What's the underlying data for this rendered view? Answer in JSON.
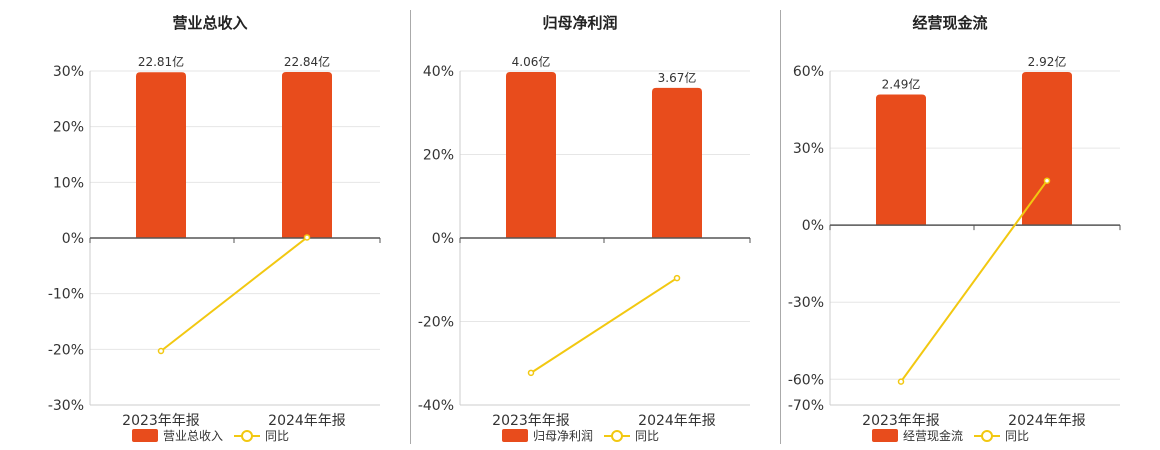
{
  "colors": {
    "bar": "#E84C1C",
    "line": "#F2C811",
    "grid": "#e6e6e6",
    "axis": "#555555"
  },
  "chart_data": [
    {
      "type": "bar",
      "title": "营业总收入",
      "categories": [
        "2023年年报",
        "2024年年报"
      ],
      "series": [
        {
          "name": "营业总收入",
          "type": "bar",
          "values": [
            22.81,
            22.84
          ],
          "labels": [
            "22.81亿",
            "22.84亿"
          ]
        },
        {
          "name": "同比",
          "type": "line",
          "values": [
            -20.3,
            0.1
          ]
        }
      ],
      "yticks": [
        30,
        20,
        10,
        0,
        -10,
        -20,
        -30
      ],
      "ytick_labels": [
        "30%",
        "20%",
        "10%",
        "0%",
        "-10%",
        "-20%",
        "-30%"
      ],
      "ylim": [
        -30,
        30
      ],
      "legend": "bottom"
    },
    {
      "type": "bar",
      "title": "归母净利润",
      "categories": [
        "2023年年报",
        "2024年年报"
      ],
      "series": [
        {
          "name": "归母净利润",
          "type": "bar",
          "values": [
            4.06,
            3.67
          ],
          "labels": [
            "4.06亿",
            "3.67亿"
          ]
        },
        {
          "name": "同比",
          "type": "line",
          "values": [
            -32.3,
            -9.6
          ]
        }
      ],
      "yticks": [
        40,
        20,
        0,
        -20,
        -40
      ],
      "ytick_labels": [
        "40%",
        "20%",
        "0%",
        "-20%",
        "-40%"
      ],
      "ylim": [
        -40,
        40
      ],
      "legend": "bottom"
    },
    {
      "type": "bar",
      "title": "经营现金流",
      "categories": [
        "2023年年报",
        "2024年年报"
      ],
      "series": [
        {
          "name": "经营现金流",
          "type": "bar",
          "values": [
            2.49,
            2.92
          ],
          "labels": [
            "2.49亿",
            "2.92亿"
          ]
        },
        {
          "name": "同比",
          "type": "line",
          "values": [
            -60.9,
            17.3
          ]
        }
      ],
      "yticks": [
        60,
        30,
        0,
        -30,
        -60,
        -70
      ],
      "ytick_labels": [
        "60%",
        "30%",
        "0%",
        "-30%",
        "-60%",
        "-70%"
      ],
      "ylim": [
        -70,
        60
      ],
      "legend": "bottom"
    }
  ]
}
